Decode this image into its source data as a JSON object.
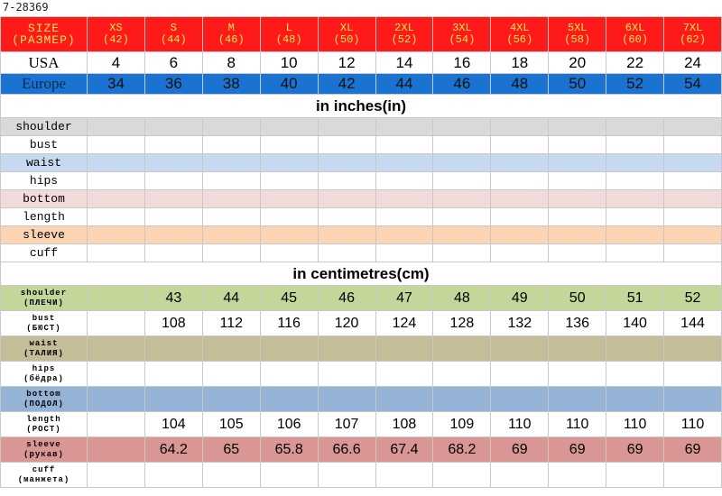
{
  "code": "7-28369",
  "size_row": {
    "label": [
      "SIZE",
      "(РАЗМЕР)"
    ],
    "cells": [
      [
        "XS",
        "(42)"
      ],
      [
        "S",
        "(44)"
      ],
      [
        "M",
        "(46)"
      ],
      [
        "L",
        "(48)"
      ],
      [
        "XL",
        "(50)"
      ],
      [
        "2XL",
        "(52)"
      ],
      [
        "3XL",
        "(54)"
      ],
      [
        "4XL",
        "(56)"
      ],
      [
        "5XL",
        "(58)"
      ],
      [
        "6XL",
        "(60)"
      ],
      [
        "7XL",
        "(62)"
      ]
    ]
  },
  "usa_row": {
    "label": "USA",
    "values": [
      "4",
      "6",
      "8",
      "10",
      "12",
      "14",
      "16",
      "18",
      "20",
      "22",
      "24"
    ]
  },
  "europe_row": {
    "label": "Europe",
    "values": [
      "34",
      "36",
      "38",
      "40",
      "42",
      "44",
      "46",
      "48",
      "50",
      "52",
      "54"
    ]
  },
  "inches_title": "in inches(in)",
  "inch_rows": [
    {
      "label": "shoulder",
      "color": "#d9d9d9"
    },
    {
      "label": "bust",
      "color": "#ffffff"
    },
    {
      "label": "waist",
      "color": "#c6d9f1"
    },
    {
      "label": "hips",
      "color": "#ffffff"
    },
    {
      "label": "bottom",
      "color": "#f2dcdb"
    },
    {
      "label": "length",
      "color": "#ffffff"
    },
    {
      "label": "sleeve",
      "color": "#fbd4b4"
    },
    {
      "label": "cuff",
      "color": "#ffffff"
    }
  ],
  "cm_title": "in centimetres(cm)",
  "cm_rows": [
    {
      "label": [
        "shoulder",
        "(ПЛЕЧИ)"
      ],
      "color": "#c4d79b",
      "values": [
        "",
        "43",
        "44",
        "45",
        "46",
        "47",
        "48",
        "49",
        "50",
        "51",
        "52"
      ]
    },
    {
      "label": [
        "bust",
        "(БЮСТ)"
      ],
      "color": "#ffffff",
      "values": [
        "",
        "108",
        "112",
        "116",
        "120",
        "124",
        "128",
        "132",
        "136",
        "140",
        "144"
      ]
    },
    {
      "label": [
        "waist",
        "(ТАЛИЯ)"
      ],
      "color": "#c4bd97",
      "values": [
        "",
        "",
        "",
        "",
        "",
        "",
        "",
        "",
        "",
        "",
        ""
      ]
    },
    {
      "label": [
        "hips",
        "(бёдра)"
      ],
      "color": "#ffffff",
      "values": [
        "",
        "",
        "",
        "",
        "",
        "",
        "",
        "",
        "",
        "",
        ""
      ]
    },
    {
      "label": [
        "bottom",
        "(ПОДОЛ)"
      ],
      "color": "#95b3d7",
      "values": [
        "",
        "",
        "",
        "",
        "",
        "",
        "",
        "",
        "",
        "",
        ""
      ]
    },
    {
      "label": [
        "length",
        "(РОСТ)"
      ],
      "color": "#ffffff",
      "values": [
        "",
        "104",
        "105",
        "106",
        "107",
        "108",
        "109",
        "110",
        "110",
        "110",
        "110"
      ]
    },
    {
      "label": [
        "sleeve",
        "(рукав)"
      ],
      "color": "#da9694",
      "values": [
        "",
        "64.2",
        "65",
        "65.8",
        "66.6",
        "67.4",
        "68.2",
        "69",
        "69",
        "69",
        "69"
      ]
    },
    {
      "label": [
        "cuff",
        "(манжета)"
      ],
      "color": "#ffffff",
      "values": [
        "",
        "",
        "",
        "",
        "",
        "",
        "",
        "",
        "",
        "",
        ""
      ]
    }
  ]
}
